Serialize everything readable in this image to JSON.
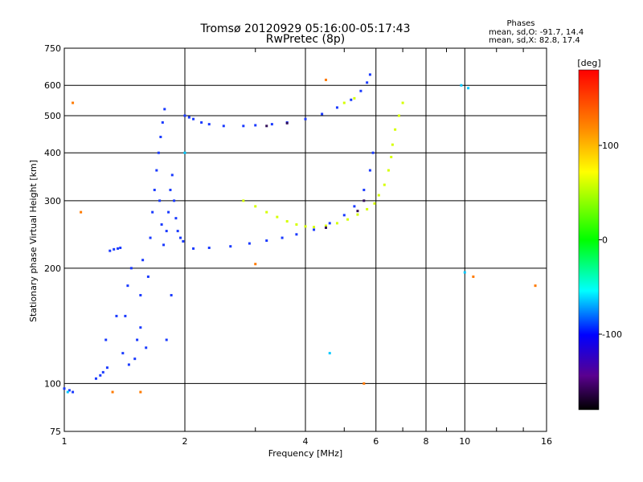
{
  "chart_data": {
    "type": "scatter",
    "title": "Tromsø 20120929 05:16:00-05:17:43",
    "subtitle": "RwPretec (8p)",
    "xlabel": "Frequency [MHz]",
    "ylabel": "Stationary phase Virtual Height [km]",
    "x_scale": "log",
    "y_scale": "log",
    "xlim": [
      1,
      16
    ],
    "ylim": [
      75,
      750
    ],
    "x_ticks": [
      "1",
      "2",
      "4",
      "6",
      "8",
      "10",
      "16"
    ],
    "x_tick_values": [
      1,
      2,
      4,
      6,
      8,
      10,
      16
    ],
    "y_ticks": [
      "75",
      "100",
      "200",
      "300",
      "400",
      "500",
      "600",
      "750"
    ],
    "y_tick_values": [
      75,
      100,
      200,
      300,
      400,
      500,
      600,
      750
    ],
    "grid": true,
    "phase_info": {
      "heading": "Phases",
      "line_o": "mean, sd,O: -91.7, 14.4",
      "line_x": "mean, sd,X: 82.8, 17.4"
    },
    "colorbar": {
      "label": "[deg]",
      "min": -180,
      "max": 180,
      "ticks": [
        "100",
        "0",
        "-100"
      ],
      "tick_values": [
        100,
        0,
        -100
      ]
    },
    "series": [
      {
        "color": "#1a3aff",
        "points": [
          [
            1.0,
            97
          ],
          [
            1.03,
            96
          ],
          [
            1.05,
            95
          ],
          [
            1.2,
            103
          ],
          [
            1.23,
            105
          ],
          [
            1.25,
            107
          ],
          [
            1.28,
            110
          ],
          [
            1.3,
            222
          ],
          [
            1.33,
            224
          ],
          [
            1.36,
            225
          ],
          [
            1.38,
            226
          ],
          [
            1.4,
            120
          ],
          [
            1.42,
            150
          ],
          [
            1.44,
            180
          ],
          [
            1.45,
            112
          ],
          [
            1.47,
            200
          ],
          [
            1.5,
            116
          ],
          [
            1.52,
            130
          ],
          [
            1.55,
            170
          ],
          [
            1.57,
            210
          ],
          [
            1.6,
            124
          ],
          [
            1.62,
            190
          ],
          [
            1.64,
            240
          ],
          [
            1.66,
            280
          ],
          [
            1.68,
            320
          ],
          [
            1.7,
            360
          ],
          [
            1.72,
            400
          ],
          [
            1.74,
            440
          ],
          [
            1.76,
            480
          ],
          [
            1.78,
            520
          ],
          [
            1.73,
            300
          ],
          [
            1.75,
            260
          ],
          [
            1.77,
            230
          ],
          [
            1.8,
            250
          ],
          [
            1.82,
            280
          ],
          [
            1.84,
            320
          ],
          [
            1.86,
            350
          ],
          [
            1.88,
            300
          ],
          [
            1.9,
            270
          ],
          [
            1.92,
            250
          ],
          [
            1.95,
            240
          ],
          [
            1.98,
            235
          ],
          [
            2.0,
            500
          ],
          [
            2.05,
            495
          ],
          [
            2.1,
            490
          ],
          [
            2.2,
            480
          ],
          [
            2.3,
            475
          ],
          [
            2.5,
            470
          ],
          [
            2.8,
            470
          ],
          [
            3.0,
            472
          ],
          [
            3.3,
            475
          ],
          [
            3.6,
            480
          ],
          [
            4.0,
            490
          ],
          [
            4.4,
            505
          ],
          [
            4.8,
            525
          ],
          [
            5.2,
            550
          ],
          [
            5.5,
            580
          ],
          [
            5.7,
            610
          ],
          [
            5.8,
            640
          ],
          [
            2.1,
            225
          ],
          [
            2.3,
            226
          ],
          [
            2.6,
            228
          ],
          [
            2.9,
            232
          ],
          [
            3.2,
            236
          ],
          [
            3.5,
            240
          ],
          [
            3.8,
            245
          ],
          [
            4.2,
            252
          ],
          [
            4.6,
            262
          ],
          [
            5.0,
            275
          ],
          [
            5.3,
            290
          ],
          [
            5.6,
            320
          ],
          [
            5.8,
            360
          ],
          [
            5.9,
            400
          ],
          [
            1.8,
            130
          ],
          [
            1.85,
            170
          ],
          [
            1.35,
            150
          ],
          [
            1.27,
            130
          ],
          [
            1.55,
            140
          ]
        ]
      },
      {
        "color": "#d6ff00",
        "points": [
          [
            2.8,
            300
          ],
          [
            3.0,
            290
          ],
          [
            3.2,
            280
          ],
          [
            3.4,
            272
          ],
          [
            3.6,
            265
          ],
          [
            3.8,
            260
          ],
          [
            4.0,
            257
          ],
          [
            4.2,
            256
          ],
          [
            4.5,
            258
          ],
          [
            4.8,
            262
          ],
          [
            5.1,
            268
          ],
          [
            5.4,
            276
          ],
          [
            5.7,
            285
          ],
          [
            5.95,
            295
          ],
          [
            6.1,
            310
          ],
          [
            6.3,
            330
          ],
          [
            6.45,
            360
          ],
          [
            6.55,
            390
          ],
          [
            6.6,
            420
          ],
          [
            6.7,
            460
          ],
          [
            6.85,
            500
          ],
          [
            7.0,
            540
          ],
          [
            5.0,
            540
          ],
          [
            5.3,
            555
          ]
        ]
      },
      {
        "color": "#33105a",
        "points": [
          [
            3.2,
            470
          ],
          [
            3.6,
            478
          ],
          [
            4.5,
            255
          ],
          [
            5.4,
            282
          ],
          [
            5.6,
            300
          ]
        ]
      },
      {
        "color": "#ff7a00",
        "points": [
          [
            1.05,
            540
          ],
          [
            1.1,
            280
          ],
          [
            1.32,
            95
          ],
          [
            1.55,
            95
          ],
          [
            4.5,
            620
          ],
          [
            3.0,
            205
          ],
          [
            5.6,
            100
          ],
          [
            10.5,
            190
          ],
          [
            15.0,
            180
          ]
        ]
      },
      {
        "color": "#00c8ff",
        "points": [
          [
            1.02,
            95
          ],
          [
            2.0,
            400
          ],
          [
            4.6,
            120
          ],
          [
            10.2,
            590
          ],
          [
            9.8,
            600
          ],
          [
            10.0,
            195
          ]
        ]
      }
    ]
  }
}
